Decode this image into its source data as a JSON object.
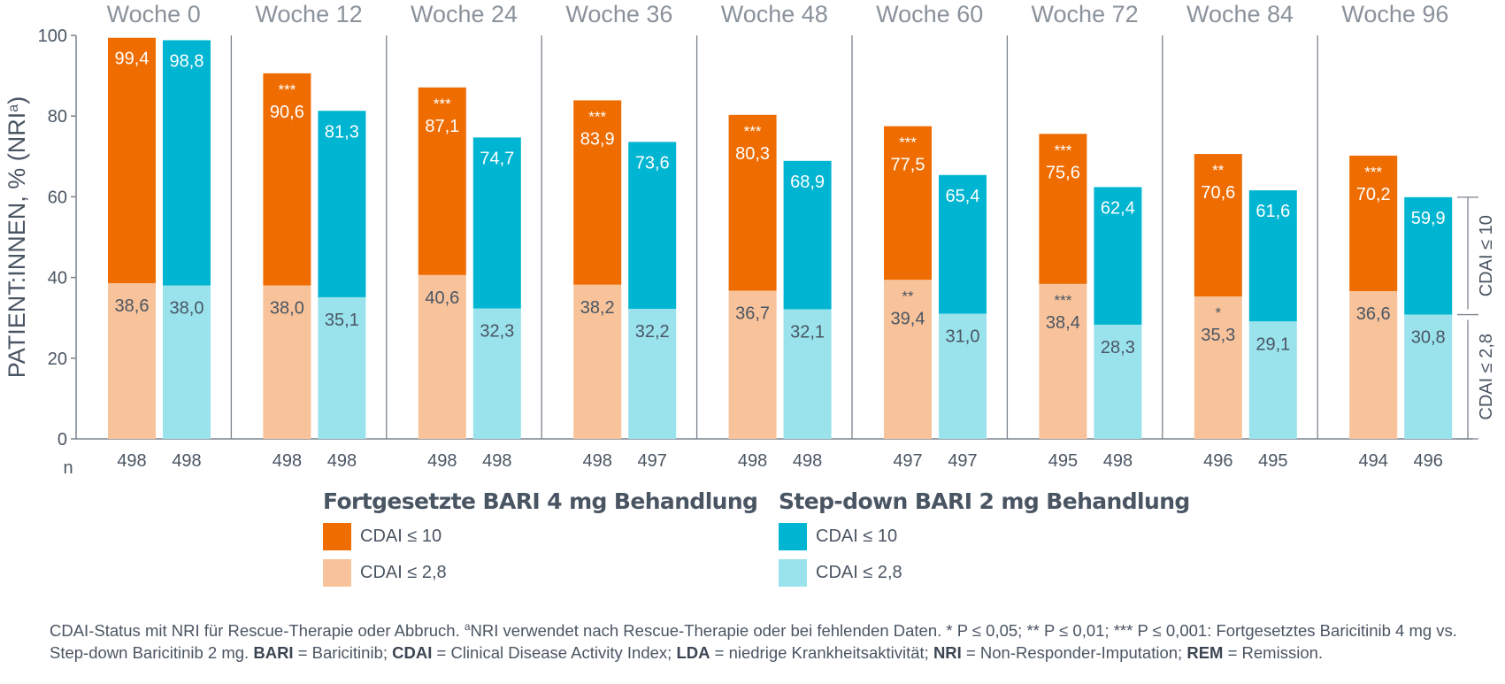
{
  "chart_data": {
    "type": "bar",
    "stacked": true,
    "ylabel": "PATIENT:INNEN, % (NRI",
    "ylabel_sup": "a",
    "ylabel_close": ")",
    "ylim": [
      0,
      100
    ],
    "yticks": [
      0,
      20,
      40,
      60,
      80,
      100
    ],
    "n_label": "n",
    "categories": [
      "Woche 0",
      "Woche 12",
      "Woche 24",
      "Woche 36",
      "Woche 48",
      "Woche 60",
      "Woche 72",
      "Woche 84",
      "Woche 96"
    ],
    "series": [
      {
        "name": "Fortgesetzte BARI 4 mg Behandlung",
        "cdai10": [
          99.4,
          90.6,
          87.1,
          83.9,
          80.3,
          77.5,
          75.6,
          70.6,
          70.2
        ],
        "cdai10_labels": [
          "99,4",
          "90,6",
          "87,1",
          "83,9",
          "80,3",
          "77,5",
          "75,6",
          "70,6",
          "70,2"
        ],
        "cdai10_sig": [
          "",
          "***",
          "***",
          "***",
          "***",
          "***",
          "***",
          "**",
          "***"
        ],
        "cdai28": [
          38.6,
          38.0,
          40.6,
          38.2,
          36.7,
          39.4,
          38.4,
          35.3,
          36.6
        ],
        "cdai28_labels": [
          "38,6",
          "38,0",
          "40,6",
          "38,2",
          "36,7",
          "39,4",
          "38,4",
          "35,3",
          "36,6"
        ],
        "cdai28_sig": [
          "",
          "",
          "",
          "",
          "",
          "**",
          "***",
          "*",
          ""
        ],
        "n": [
          "498",
          "498",
          "498",
          "498",
          "498",
          "497",
          "495",
          "496",
          "494"
        ],
        "color_dark": "#ef6c00",
        "color_light": "#f8c39a"
      },
      {
        "name": "Step-down BARI 2 mg Behandlung",
        "cdai10": [
          98.8,
          81.3,
          74.7,
          73.6,
          68.9,
          65.4,
          62.4,
          61.6,
          59.9
        ],
        "cdai10_labels": [
          "98,8",
          "81,3",
          "74,7",
          "73,6",
          "68,9",
          "65,4",
          "62,4",
          "61,6",
          "59,9"
        ],
        "cdai10_sig": [
          "",
          "",
          "",
          "",
          "",
          "",
          "",
          "",
          ""
        ],
        "cdai28": [
          38.0,
          35.1,
          32.3,
          32.2,
          32.1,
          31.0,
          28.3,
          29.1,
          30.8
        ],
        "cdai28_labels": [
          "38,0",
          "35,1",
          "32,3",
          "32,2",
          "32,1",
          "31,0",
          "28,3",
          "29,1",
          "30,8"
        ],
        "cdai28_sig": [
          "",
          "",
          "",
          "",
          "",
          "",
          "",
          "",
          ""
        ],
        "n": [
          "498",
          "498",
          "498",
          "497",
          "498",
          "497",
          "498",
          "495",
          "496"
        ],
        "color_dark": "#00b5d1",
        "color_light": "#9ae3ec"
      }
    ],
    "bracket_labels": {
      "cdai10": "CDAI ≤ 10",
      "cdai28": "CDAI ≤ 2,8"
    }
  },
  "legend": {
    "groups": [
      {
        "title": "Fortgesetzte BARI 4 mg Behandlung",
        "items": [
          {
            "label": "CDAI ≤ 10",
            "color": "#ef6c00"
          },
          {
            "label": "CDAI ≤ 2,8",
            "color": "#f8c39a"
          }
        ]
      },
      {
        "title": "Step-down BARI 2 mg Behandlung",
        "items": [
          {
            "label": "CDAI ≤ 10",
            "color": "#00b5d1"
          },
          {
            "label": "CDAI ≤ 2,8",
            "color": "#9ae3ec"
          }
        ]
      }
    ]
  },
  "footnote": {
    "part1": "CDAI-Status mit NRI für Rescue-Therapie oder Abbruch. ",
    "sup_a": "a",
    "part2": "NRI verwendet nach Rescue-Therapie oder bei fehlenden Daten. * P ≤ 0,05; ** P ≤ 0,01; *** P ≤ 0,001: Fortgesetztes Baricitinib 4 mg vs. Step-down Baricitinib 2 mg. ",
    "bari_abbr": "BARI",
    "bari_def": " = Baricitinib; ",
    "cdai_abbr": "CDAI",
    "cdai_def": " = Clinical Disease Activity Index; ",
    "lda_abbr": "LDA",
    "lda_def": " = niedrige Krankheitsaktivität; ",
    "nri_abbr": "NRI",
    "nri_def": " = Non-Responder-Imputation; ",
    "rem_abbr": "REM",
    "rem_def": " = Remission."
  }
}
